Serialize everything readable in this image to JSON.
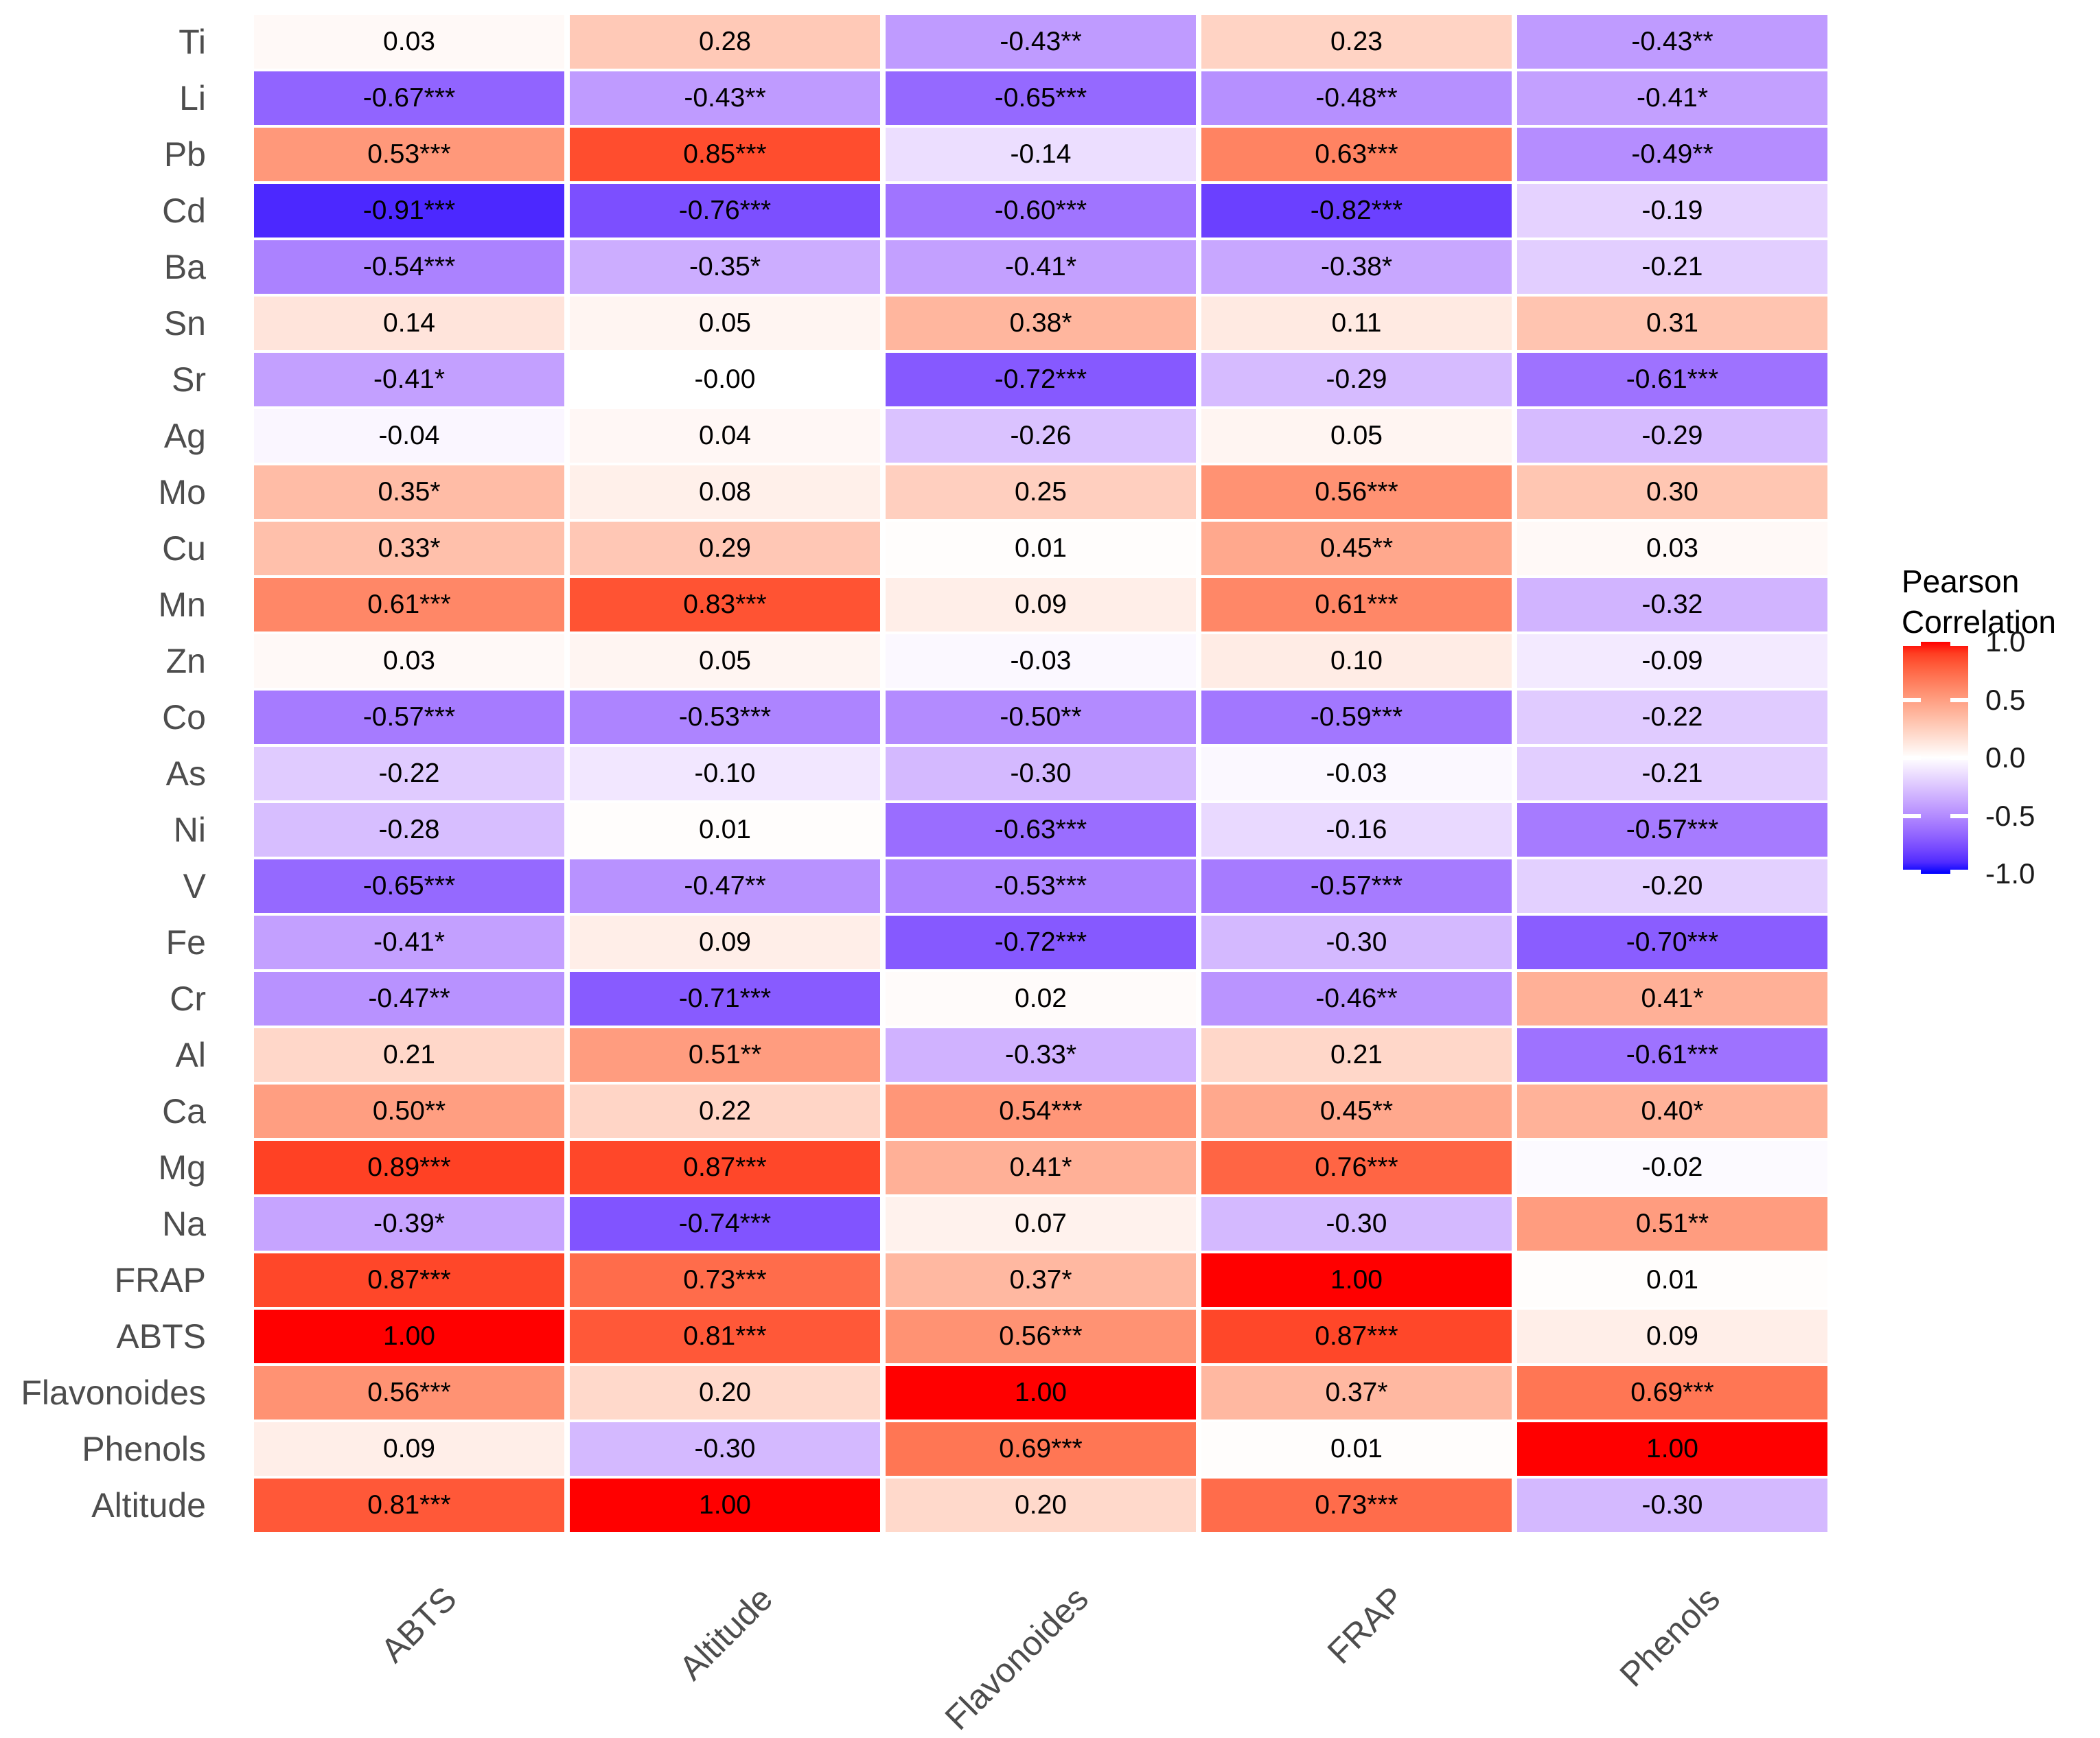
{
  "chart_data": {
    "type": "heatmap",
    "title": "",
    "xlabel": "",
    "ylabel": "",
    "grid": false,
    "legend_position": "right",
    "columns": [
      "ABTS",
      "Altitude",
      "Flavonoides",
      "FRAP",
      "Phenols"
    ],
    "rows": [
      "Ti",
      "Li",
      "Pb",
      "Cd",
      "Ba",
      "Sn",
      "Sr",
      "Ag",
      "Mo",
      "Cu",
      "Mn",
      "Zn",
      "Co",
      "As",
      "Ni",
      "V",
      "Fe",
      "Cr",
      "Al",
      "Ca",
      "Mg",
      "Na",
      "FRAP",
      "ABTS",
      "Flavonoides",
      "Phenols",
      "Altitude"
    ],
    "cell_labels": [
      [
        "0.03",
        "0.28",
        "-0.43**",
        "0.23",
        "-0.43**"
      ],
      [
        "-0.67***",
        "-0.43**",
        "-0.65***",
        "-0.48**",
        "-0.41*"
      ],
      [
        "0.53***",
        "0.85***",
        "-0.14",
        "0.63***",
        "-0.49**"
      ],
      [
        "-0.91***",
        "-0.76***",
        "-0.60***",
        "-0.82***",
        "-0.19"
      ],
      [
        "-0.54***",
        "-0.35*",
        "-0.41*",
        "-0.38*",
        "-0.21"
      ],
      [
        "0.14",
        "0.05",
        "0.38*",
        "0.11",
        "0.31"
      ],
      [
        "-0.41*",
        "-0.00",
        "-0.72***",
        "-0.29",
        "-0.61***"
      ],
      [
        "-0.04",
        "0.04",
        "-0.26",
        "0.05",
        "-0.29"
      ],
      [
        "0.35*",
        "0.08",
        "0.25",
        "0.56***",
        "0.30"
      ],
      [
        "0.33*",
        "0.29",
        "0.01",
        "0.45**",
        "0.03"
      ],
      [
        "0.61***",
        "0.83***",
        "0.09",
        "0.61***",
        "-0.32"
      ],
      [
        "0.03",
        "0.05",
        "-0.03",
        "0.10",
        "-0.09"
      ],
      [
        "-0.57***",
        "-0.53***",
        "-0.50**",
        "-0.59***",
        "-0.22"
      ],
      [
        "-0.22",
        "-0.10",
        "-0.30",
        "-0.03",
        "-0.21"
      ],
      [
        "-0.28",
        "0.01",
        "-0.63***",
        "-0.16",
        "-0.57***"
      ],
      [
        "-0.65***",
        "-0.47**",
        "-0.53***",
        "-0.57***",
        "-0.20"
      ],
      [
        "-0.41*",
        "0.09",
        "-0.72***",
        "-0.30",
        "-0.70***"
      ],
      [
        "-0.47**",
        "-0.71***",
        "0.02",
        "-0.46**",
        "0.41*"
      ],
      [
        "0.21",
        "0.51**",
        "-0.33*",
        "0.21",
        "-0.61***"
      ],
      [
        "0.50**",
        "0.22",
        "0.54***",
        "0.45**",
        "0.40*"
      ],
      [
        "0.89***",
        "0.87***",
        "0.41*",
        "0.76***",
        "-0.02"
      ],
      [
        "-0.39*",
        "-0.74***",
        "0.07",
        "-0.30",
        "0.51**"
      ],
      [
        "0.87***",
        "0.73***",
        "0.37*",
        "1.00",
        "0.01"
      ],
      [
        "1.00",
        "0.81***",
        "0.56***",
        "0.87***",
        "0.09"
      ],
      [
        "0.56***",
        "0.20",
        "1.00",
        "0.37*",
        "0.69***"
      ],
      [
        "0.09",
        "-0.30",
        "0.69***",
        "0.01",
        "1.00"
      ],
      [
        "0.81***",
        "1.00",
        "0.20",
        "0.73***",
        "-0.30"
      ]
    ],
    "color_scale": {
      "low": "#0000FF",
      "mid": "#FFFFFF",
      "high": "#FF0000",
      "domain": [
        -1,
        1
      ],
      "interpolation": "lab"
    }
  },
  "legend": {
    "title_line1": "Pearson",
    "title_line2": "Correlation",
    "ticks": [
      "1.0",
      "0.5",
      "0.0",
      "-0.5",
      "-1.0"
    ]
  }
}
